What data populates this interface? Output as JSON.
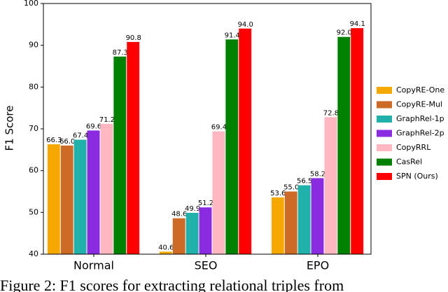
{
  "chart_data": {
    "type": "bar",
    "caption": "Figure 2: F1 scores for extracting relational triples from",
    "y_label": "F1 Score",
    "categories": [
      "Normal",
      "SEO",
      "EPO"
    ],
    "ylim": [
      40,
      100
    ],
    "yticks": [
      40,
      50,
      60,
      70,
      80,
      90,
      100
    ],
    "legend": "right",
    "series": [
      {
        "name": "CopyRE-One",
        "color": "#f5a800",
        "values": [
          66.3,
          40.6,
          53.6
        ],
        "value_labels": [
          "66.3",
          "40.6",
          "53.6"
        ]
      },
      {
        "name": "CopyRE-Mul",
        "color": "#cd6a25",
        "values": [
          66.0,
          48.6,
          55.0
        ],
        "value_labels": [
          "66.0",
          "48.6",
          "55.0"
        ]
      },
      {
        "name": "GraphRel-1p",
        "color": "#20b2aa",
        "values": [
          67.4,
          49.9,
          56.5
        ],
        "value_labels": [
          "67.4",
          "49.9",
          "56.5"
        ]
      },
      {
        "name": "GraphRel-2p",
        "color": "#8a2be2",
        "values": [
          69.6,
          51.2,
          58.2
        ],
        "value_labels": [
          "69.6",
          "51.2",
          "58.2"
        ]
      },
      {
        "name": "CopyRRL",
        "color": "#ffb6c1",
        "values": [
          71.2,
          69.4,
          72.8
        ],
        "value_labels": [
          "71.2",
          "69.4",
          "72.8"
        ]
      },
      {
        "name": "CasRel",
        "color": "#008000",
        "values": [
          87.3,
          91.4,
          92.0
        ],
        "value_labels": [
          "87.3",
          "91.4",
          "92.0"
        ]
      },
      {
        "name": "SPN (Ours)",
        "color": "#ff0000",
        "values": [
          90.8,
          94.0,
          94.1
        ],
        "value_labels": [
          "90.8",
          "94.0",
          "94.1"
        ]
      }
    ]
  }
}
